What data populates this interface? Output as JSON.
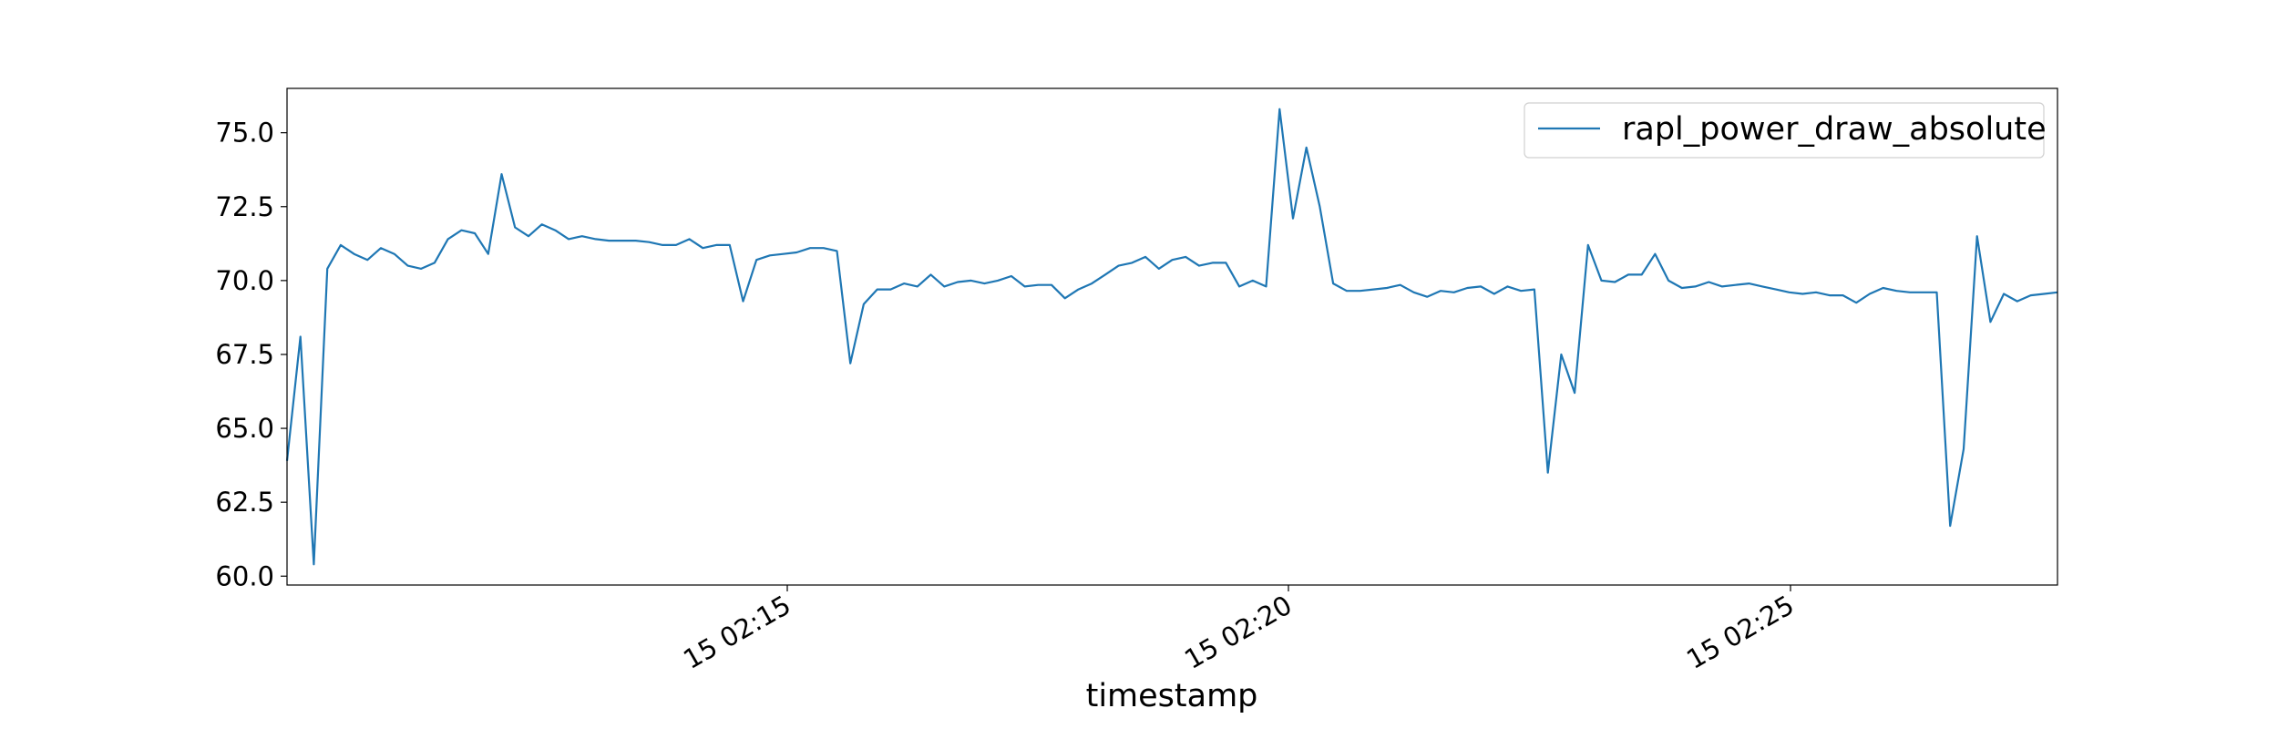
{
  "chart_data": {
    "type": "line",
    "title": "",
    "xlabel": "timestamp",
    "ylabel": "",
    "ylim": [
      59.7,
      76.5
    ],
    "x_ticks": [
      "15 02:15",
      "15 02:20",
      "15 02:25"
    ],
    "y_ticks": [
      "60.0",
      "62.5",
      "65.0",
      "67.5",
      "70.0",
      "72.5",
      "75.0"
    ],
    "grid": false,
    "legend_position": "top-right",
    "series": [
      {
        "name": "rapl_power_draw_absolute",
        "color": "#1f77b4",
        "values": [
          63.9,
          68.1,
          60.4,
          70.4,
          71.2,
          70.9,
          70.7,
          71.1,
          70.9,
          70.5,
          70.4,
          70.6,
          71.4,
          71.7,
          71.6,
          70.9,
          73.6,
          71.8,
          71.5,
          71.9,
          71.7,
          71.4,
          71.5,
          71.4,
          71.35,
          71.35,
          71.35,
          71.3,
          71.2,
          71.2,
          71.4,
          71.1,
          71.2,
          71.2,
          69.3,
          70.7,
          70.85,
          70.9,
          70.95,
          71.1,
          71.1,
          71.0,
          67.2,
          69.2,
          69.7,
          69.7,
          69.9,
          69.8,
          70.2,
          69.8,
          69.95,
          70.0,
          69.9,
          70.0,
          70.15,
          69.8,
          69.85,
          69.85,
          69.4,
          69.7,
          69.9,
          70.2,
          70.5,
          70.6,
          70.8,
          70.4,
          70.7,
          70.8,
          70.5,
          70.6,
          70.6,
          69.8,
          70.0,
          69.8,
          75.8,
          72.1,
          74.5,
          72.5,
          69.9,
          69.65,
          69.65,
          69.7,
          69.75,
          69.85,
          69.6,
          69.45,
          69.65,
          69.6,
          69.75,
          69.8,
          69.55,
          69.8,
          69.65,
          69.7,
          63.5,
          67.5,
          66.2,
          71.2,
          70.0,
          69.95,
          70.2,
          70.2,
          70.9,
          70.0,
          69.75,
          69.8,
          69.95,
          69.8,
          69.85,
          69.9,
          69.8,
          69.7,
          69.6,
          69.55,
          69.6,
          69.5,
          69.5,
          69.25,
          69.55,
          69.75,
          69.65,
          69.6,
          69.6,
          69.6,
          61.7,
          64.3,
          71.5,
          68.6,
          69.55,
          69.3,
          69.5,
          69.55,
          69.6
        ]
      }
    ]
  }
}
